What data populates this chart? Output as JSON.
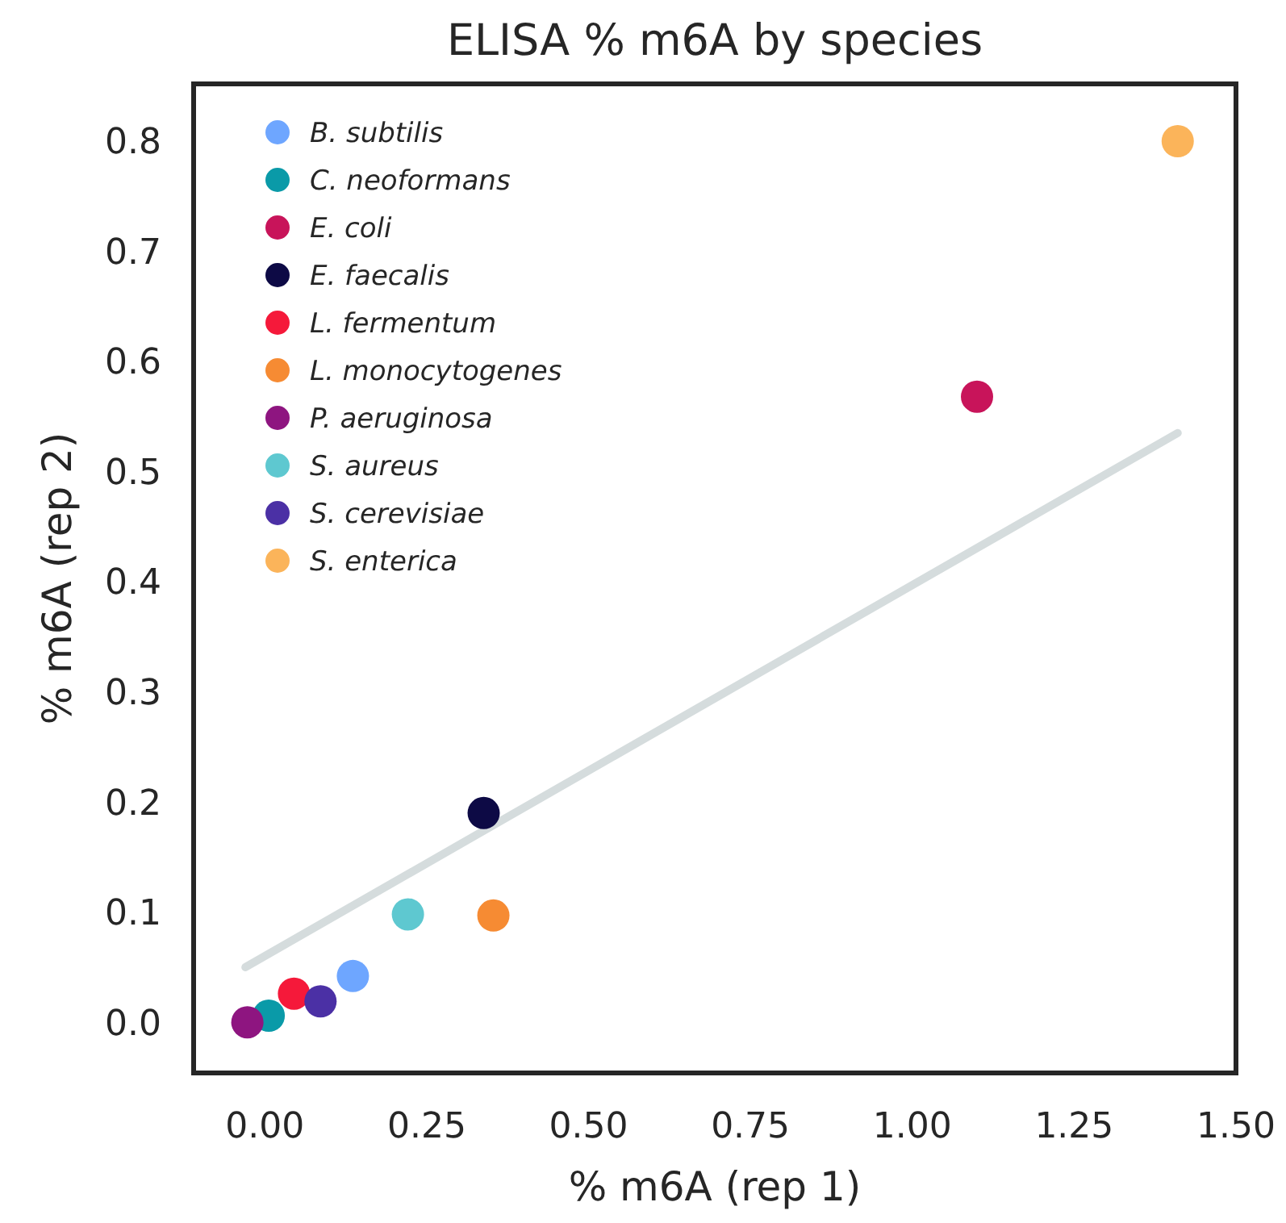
{
  "chart_data": {
    "type": "scatter",
    "title": "ELISA % m6A by species",
    "xlabel": "% m6A (rep 1)",
    "ylabel": "% m6A (rep 2)",
    "xlim": [
      -0.11,
      1.5
    ],
    "xticks": [
      {
        "value": 0,
        "label": "0.00"
      },
      0.25,
      {
        "value": 0.5,
        "label": "0.50"
      },
      0.75,
      {
        "value": 1,
        "label": "1.00"
      },
      1.25,
      {
        "value": 1.5,
        "label": "1.50"
      }
    ],
    "ylim": [
      -0.046,
      0.852
    ],
    "yticks": [
      {
        "value": 0,
        "label": "0.0"
      },
      0.1,
      0.2,
      0.3,
      0.4,
      0.5,
      0.6,
      0.7,
      0.8
    ],
    "grid": false,
    "legend": "top left",
    "marker": "circle",
    "series": [
      {
        "type": "line",
        "color": "#d5dcdd",
        "x": [
          -0.03,
          1.41
        ],
        "values": [
          0.05,
          0.535
        ],
        "marker": "none"
      },
      {
        "name": "B. subtilis",
        "color": "#6ea6ff",
        "x": [
          0.136
        ],
        "values": [
          0.042
        ]
      },
      {
        "name": "C. neoformans",
        "color": "#0a9aa8",
        "x": [
          0.006
        ],
        "values": [
          0.006
        ]
      },
      {
        "name": "E. coli",
        "color": "#c8145a",
        "x": [
          1.1
        ],
        "values": [
          0.568
        ]
      },
      {
        "name": "E. faecalis",
        "color": "#0d0a45",
        "x": [
          0.338
        ],
        "values": [
          0.19
        ]
      },
      {
        "name": "L. fermentum",
        "color": "#f5193a",
        "x": [
          0.045
        ],
        "values": [
          0.026
        ]
      },
      {
        "name": "L. monocytogenes",
        "color": "#f68b33",
        "x": [
          0.353
        ],
        "values": [
          0.097
        ]
      },
      {
        "name": "P. aeruginosa",
        "color": "#8e1580",
        "x": [
          -0.027
        ],
        "values": [
          0.0
        ]
      },
      {
        "name": "S. aureus",
        "color": "#5ec8d0",
        "x": [
          0.221
        ],
        "values": [
          0.098
        ]
      },
      {
        "name": "S. cerevisiae",
        "color": "#4b30a5",
        "x": [
          0.086
        ],
        "values": [
          0.019
        ]
      },
      {
        "name": "S. enterica",
        "color": "#fbb45a",
        "x": [
          1.41
        ],
        "values": [
          0.8
        ]
      }
    ]
  }
}
